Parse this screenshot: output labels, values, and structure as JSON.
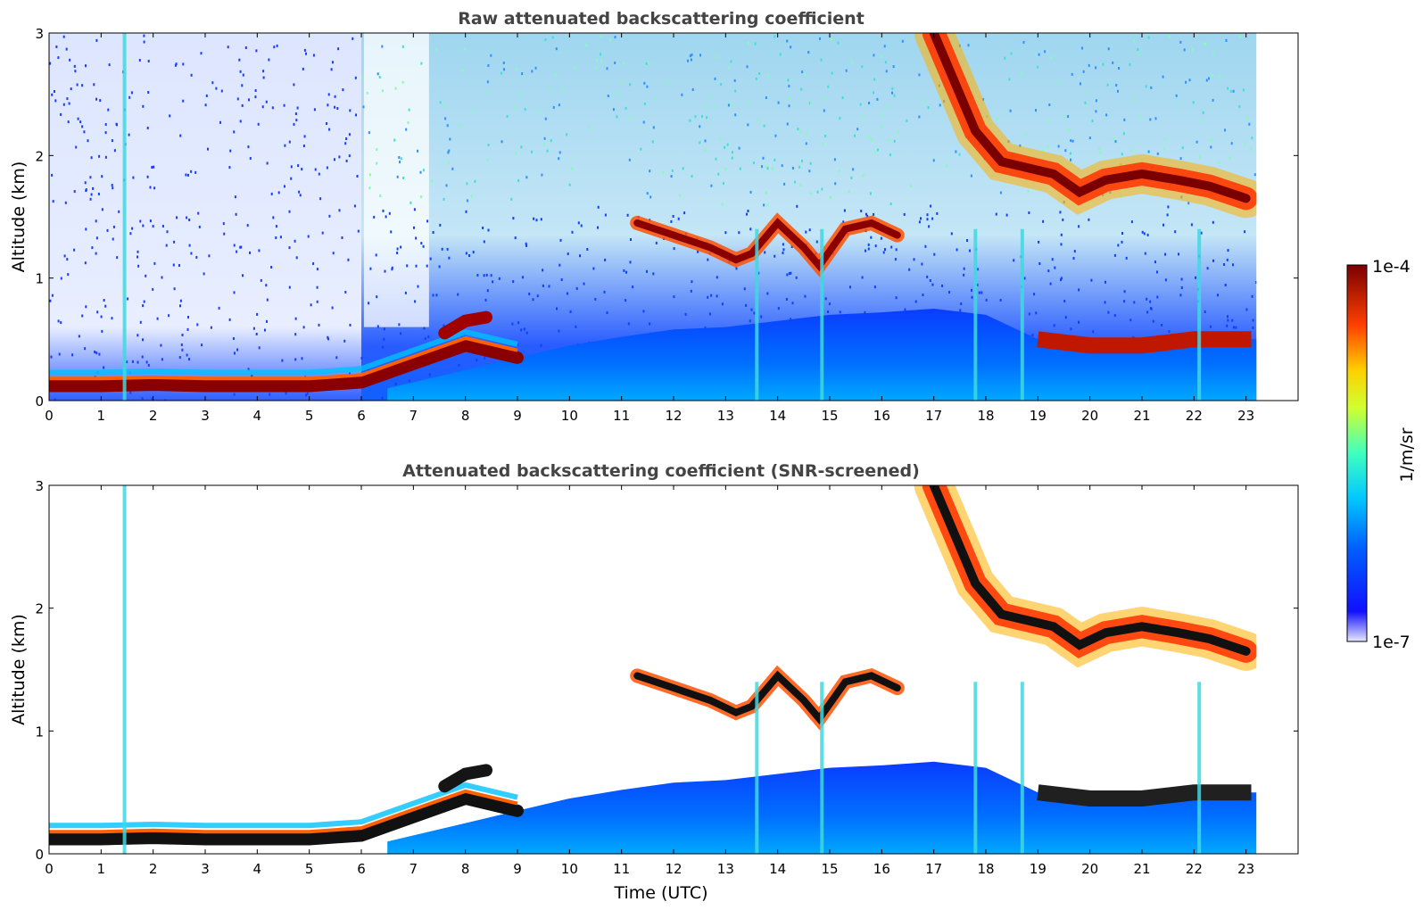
{
  "chart_data": [
    {
      "type": "heatmap",
      "title": "Raw attenuated backscattering coefficient",
      "xlabel": "",
      "ylabel": "Altitude (km)",
      "x_ticks": [
        "0",
        "1",
        "2",
        "3",
        "4",
        "5",
        "6",
        "7",
        "8",
        "9",
        "10",
        "11",
        "12",
        "13",
        "14",
        "15",
        "16",
        "17",
        "18",
        "19",
        "20",
        "21",
        "22",
        "23"
      ],
      "y_ticks": [
        "0",
        "1",
        "2",
        "3"
      ],
      "xlim": [
        0,
        24
      ],
      "ylim": [
        0,
        3
      ],
      "data_end_time": 23.2,
      "features": {
        "surface_layer": [
          [
            0,
            0.12
          ],
          [
            1,
            0.12
          ],
          [
            2,
            0.13
          ],
          [
            3,
            0.12
          ],
          [
            4,
            0.12
          ],
          [
            5,
            0.12
          ],
          [
            6,
            0.15
          ],
          [
            7,
            0.3
          ],
          [
            8,
            0.45
          ],
          [
            9,
            0.35
          ]
        ],
        "elevated_layer_morning": [
          [
            7.6,
            0.55
          ],
          [
            8,
            0.65
          ],
          [
            8.4,
            0.68
          ]
        ],
        "cloud_layer_midday": [
          [
            11.3,
            1.45
          ],
          [
            12,
            1.35
          ],
          [
            12.7,
            1.25
          ],
          [
            13.2,
            1.15
          ],
          [
            13.5,
            1.2
          ],
          [
            14,
            1.45
          ],
          [
            14.5,
            1.25
          ],
          [
            14.8,
            1.1
          ],
          [
            15.3,
            1.4
          ],
          [
            15.8,
            1.45
          ],
          [
            16.3,
            1.35
          ]
        ],
        "cloud_layer_evening": [
          [
            17,
            3.0
          ],
          [
            17.4,
            2.6
          ],
          [
            17.8,
            2.2
          ],
          [
            18.3,
            1.95
          ],
          [
            18.8,
            1.9
          ],
          [
            19.3,
            1.85
          ],
          [
            19.8,
            1.7
          ],
          [
            20.3,
            1.8
          ],
          [
            21,
            1.85
          ],
          [
            21.7,
            1.8
          ],
          [
            22.3,
            1.75
          ],
          [
            23,
            1.65
          ]
        ],
        "boundary_layer_evening": [
          [
            19,
            0.5
          ],
          [
            20,
            0.45
          ],
          [
            21,
            0.45
          ],
          [
            22,
            0.5
          ],
          [
            23.1,
            0.5
          ]
        ]
      }
    },
    {
      "type": "heatmap",
      "title": "Attenuated backscattering coefficient (SNR-screened)",
      "xlabel": "Time (UTC)",
      "ylabel": "Altitude (km)",
      "x_ticks": [
        "0",
        "1",
        "2",
        "3",
        "4",
        "5",
        "6",
        "7",
        "8",
        "9",
        "10",
        "11",
        "12",
        "13",
        "14",
        "15",
        "16",
        "17",
        "18",
        "19",
        "20",
        "21",
        "22",
        "23"
      ],
      "y_ticks": [
        "0",
        "1",
        "2",
        "3"
      ],
      "xlim": [
        0,
        24
      ],
      "ylim": [
        0,
        3
      ],
      "data_end_time": 23.2
    }
  ],
  "colorbar": {
    "label": "1/m/sr",
    "max_label": "1e-4",
    "min_label": "1e-7",
    "colormap": "jet",
    "scale": "log",
    "range": [
      1e-07,
      0.0001
    ]
  },
  "colors": {
    "title": "#444444",
    "axis": "#000000"
  }
}
